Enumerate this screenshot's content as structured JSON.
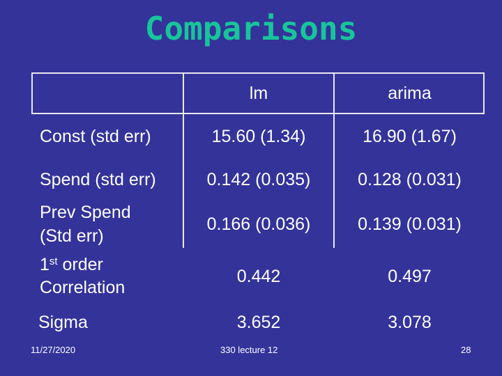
{
  "slide": {
    "title": "Comparisons"
  },
  "table": {
    "columns": [
      "lm",
      "arima"
    ],
    "rows": [
      {
        "label_line1": "Const (std err)",
        "label_line2": "",
        "lm": "15.60 (1.34)",
        "arima": "16.90 (1.67)"
      },
      {
        "label_line1": "Spend (std err)",
        "label_line2": "",
        "lm": "0.142 (0.035)",
        "arima": "0.128 (0.031)"
      },
      {
        "label_line1": "Prev Spend",
        "label_line2": "(Std err)",
        "lm": "0.166 (0.036)",
        "arima": "0.139 (0.031)"
      },
      {
        "label_line1_num": "1",
        "label_line1_sup": "st",
        "label_line1_rest": " order",
        "label_line2": "Correlation",
        "lm": "0.442",
        "arima": "0.497"
      },
      {
        "label_line1": "Sigma",
        "label_line2": "",
        "lm": "3.652",
        "arima": "3.078"
      }
    ]
  },
  "footer": {
    "date": "11/27/2020",
    "course": "330 lecture 12",
    "page": "28"
  },
  "colors": {
    "background": "#33339a",
    "title": "#18c59a",
    "text": "#ffffff",
    "grid": "#e8e8f0"
  }
}
